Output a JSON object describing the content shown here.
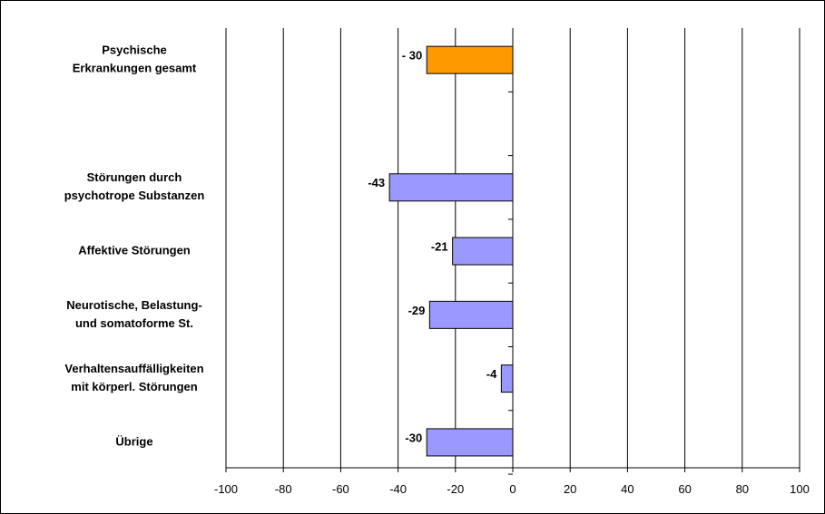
{
  "chart_data": {
    "type": "bar",
    "orientation": "horizontal",
    "title": "",
    "xlabel": "",
    "ylabel": "",
    "xlim": [
      -100,
      100
    ],
    "x_ticks": [
      -100,
      -80,
      -60,
      -40,
      -20,
      0,
      20,
      40,
      60,
      80,
      100
    ],
    "x_tick_labels": [
      "-100",
      "-80",
      "-60",
      "-40",
      "-20",
      "0",
      "20",
      "40",
      "60",
      "80",
      "100"
    ],
    "grid": "vertical",
    "legend": "none",
    "categories": [
      {
        "lines": [
          "Psychische",
          "Erkrankungen gesamt"
        ],
        "value": -30,
        "label": "- 30",
        "color": "#FF9900"
      },
      {
        "lines": [
          "Störungen durch",
          "psychotrope Substanzen"
        ],
        "value": -43,
        "label": "-43",
        "color": "#9999FF"
      },
      {
        "lines": [
          "Affektive Störungen"
        ],
        "value": -21,
        "label": "-21",
        "color": "#9999FF"
      },
      {
        "lines": [
          "Neurotische, Belastung-",
          "und somatoforme St."
        ],
        "value": -29,
        "label": "-29",
        "color": "#9999FF"
      },
      {
        "lines": [
          "Verhaltensauffälligkeiten",
          "mit körperl. Störungen"
        ],
        "value": -4,
        "label": "-4",
        "color": "#9999FF"
      },
      {
        "lines": [
          "Übrige"
        ],
        "value": -30,
        "label": "-30",
        "color": "#9999FF"
      }
    ]
  }
}
